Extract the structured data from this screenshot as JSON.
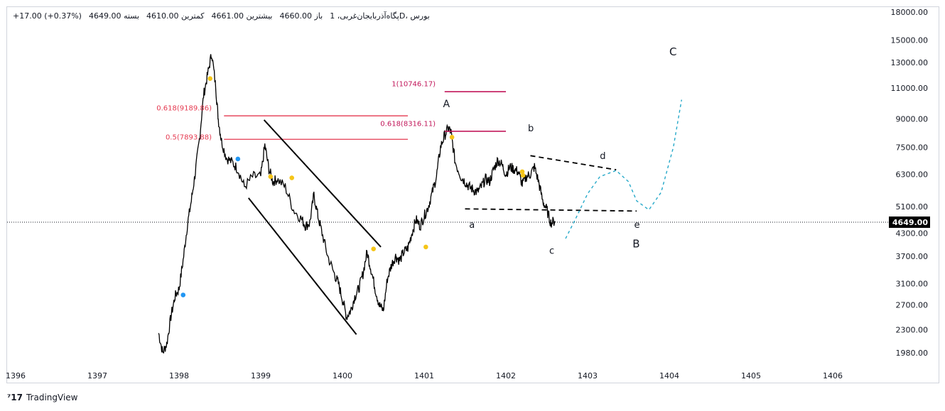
{
  "header": {
    "symbol_line": "پگاه‌آذربایجان‌غربی، 1D، بورس",
    "open": "باز 4660.00",
    "high": "بیشترین 4661.00",
    "low": "کمترین 4610.00",
    "close": "بسته 4649.00",
    "change": "+17.00 (+0.37%)"
  },
  "brand": {
    "name": "TradingView"
  },
  "colors": {
    "price": "#000000",
    "fib_red": "#e53950",
    "fib_purple": "#c2185b",
    "projection": "#26a9c9",
    "marker_yellow": "#f5c518",
    "marker_blue": "#2196f3",
    "last_price_bg": "#000000"
  },
  "chart_data": {
    "type": "line",
    "scale": "log",
    "x_axis": {
      "ticks": [
        "1396",
        "1397",
        "1398",
        "1399",
        "1400",
        "1401",
        "1402",
        "1403",
        "1404",
        "1405",
        "1406"
      ]
    },
    "y_axis": {
      "ticks": [
        18000,
        15000,
        13000,
        11000,
        9000,
        7500,
        6300,
        5100,
        4300,
        3700,
        3100,
        2700,
        2300,
        1980
      ],
      "tick_labels": [
        "18000.00",
        "15000.00",
        "13000.00",
        "11000.00",
        "9000.00",
        "7500.00",
        "6300.00",
        "5100.00",
        "4300.00",
        "3700.00",
        "3100.00",
        "2700.00",
        "2300.00",
        "1980.00"
      ]
    },
    "last_price": {
      "value": 4649,
      "label": "4649.00"
    },
    "series": [
      {
        "x": [
          1397.75,
          1397.8,
          1397.85,
          1397.9,
          1397.95,
          1398.0,
          1398.05,
          1398.1,
          1398.15,
          1398.2,
          1398.25,
          1398.3,
          1398.35,
          1398.4,
          1398.45,
          1398.48,
          1398.52,
          1398.58,
          1398.65,
          1398.72,
          1398.8,
          1398.9,
          1399.0,
          1399.05,
          1399.1,
          1399.15,
          1399.2,
          1399.3,
          1399.4,
          1399.5,
          1399.55,
          1399.6,
          1399.65,
          1399.7,
          1399.75,
          1399.82,
          1399.9,
          1399.95,
          1400.0,
          1400.05,
          1400.1,
          1400.15,
          1400.2,
          1400.25,
          1400.3,
          1400.35,
          1400.4,
          1400.45,
          1400.5,
          1400.55,
          1400.6,
          1400.65,
          1400.7,
          1400.75,
          1400.8,
          1400.85,
          1400.9,
          1400.95,
          1401.0,
          1401.05,
          1401.1,
          1401.15,
          1401.2,
          1401.25,
          1401.3,
          1401.33,
          1401.38,
          1401.45,
          1401.5,
          1401.55,
          1401.6,
          1401.65,
          1401.7,
          1401.75,
          1401.8,
          1401.85,
          1401.9,
          1401.95,
          1402.0,
          1402.05,
          1402.1,
          1402.15,
          1402.2,
          1402.25,
          1402.3,
          1402.35,
          1402.4,
          1402.45,
          1402.5,
          1402.55,
          1402.6
        ],
        "values": [
          2250,
          1980,
          2100,
          2500,
          2850,
          3000,
          3600,
          4500,
          5300,
          6400,
          7900,
          10500,
          12000,
          13800,
          11000,
          9000,
          7800,
          7000,
          6800,
          6500,
          5800,
          6200,
          6200,
          7600,
          6500,
          6000,
          6100,
          5800,
          5000,
          4700,
          4500,
          4600,
          5500,
          4800,
          4300,
          3700,
          3300,
          3100,
          2800,
          2500,
          2600,
          2850,
          3000,
          3300,
          3800,
          3400,
          3000,
          2700,
          2600,
          3200,
          3500,
          3700,
          3600,
          3800,
          3900,
          4300,
          4700,
          4500,
          4800,
          5100,
          5600,
          6200,
          7500,
          8100,
          8500,
          8200,
          6800,
          6200,
          6000,
          5800,
          5700,
          5600,
          5800,
          6100,
          6000,
          6500,
          6900,
          6700,
          6300,
          6600,
          6500,
          6400,
          5900,
          6200,
          6300,
          6600,
          6000,
          5300,
          5000,
          4600,
          4650
        ]
      }
    ],
    "fib_levels": [
      {
        "label": "0.618(9189.86)",
        "value": 9189.86
      },
      {
        "label": "0.5(7893.88)",
        "value": 7893.88
      },
      {
        "label": "1(10746.17)",
        "value": 10746.17
      },
      {
        "label": "0.618(8316.11)",
        "value": 8316.11
      }
    ],
    "wave_labels": [
      "A",
      "b",
      "a",
      "c",
      "d",
      "e",
      "B",
      "C"
    ]
  }
}
